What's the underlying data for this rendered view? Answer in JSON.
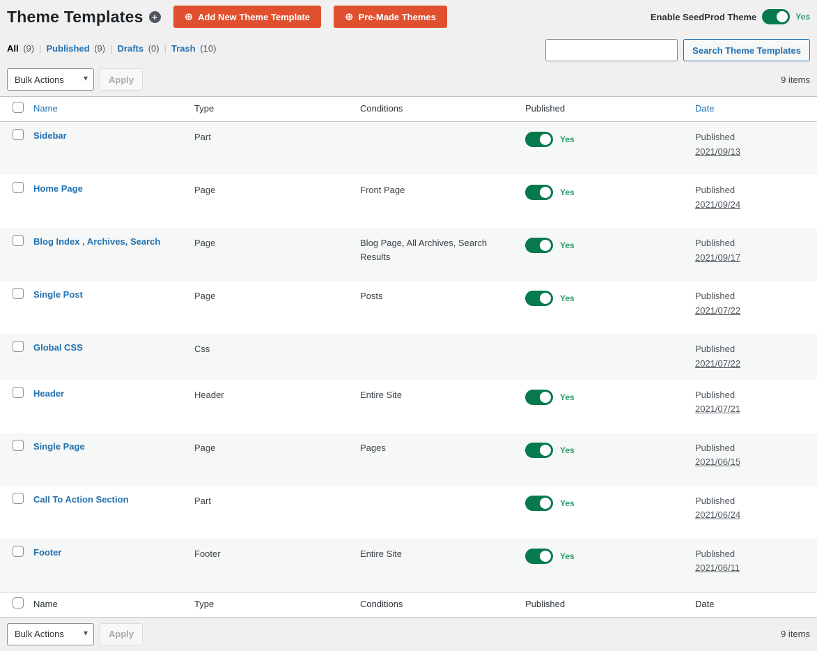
{
  "colors": {
    "accent_orange": "#e0502f",
    "toggle_green": "#077a4d",
    "yes_green": "#2f9e6d",
    "link_blue": "#2271b1"
  },
  "header": {
    "title": "Theme Templates",
    "title_icon": "+",
    "add_button_label": "Add New Theme Template",
    "premade_button_label": "Pre-Made Themes",
    "button_icon": "⊕",
    "enable_toggle": {
      "label": "Enable SeedProd Theme",
      "state": "on",
      "value_label": "Yes"
    }
  },
  "filters": [
    {
      "label": "All",
      "count": "(9)",
      "active": true
    },
    {
      "label": "Published",
      "count": "(9)",
      "active": false
    },
    {
      "label": "Drafts",
      "count": "(0)",
      "active": false
    },
    {
      "label": "Trash",
      "count": "(10)",
      "active": false
    }
  ],
  "search": {
    "value": "",
    "button_label": "Search Theme Templates"
  },
  "bulk_actions": {
    "select_label": "Bulk Actions",
    "apply_label": "Apply",
    "items_count": "9 items"
  },
  "table": {
    "columns": [
      {
        "label": "Name",
        "sortable": true
      },
      {
        "label": "Type",
        "sortable": false
      },
      {
        "label": "Conditions",
        "sortable": false
      },
      {
        "label": "Published",
        "sortable": false
      },
      {
        "label": "Date",
        "sortable": true
      }
    ],
    "rows": [
      {
        "name": "Sidebar",
        "type": "Part",
        "conditions": "",
        "published": true,
        "published_label": "Yes",
        "date_status": "Published",
        "date": "2021/09/13",
        "compact": false
      },
      {
        "name": "Home Page",
        "type": "Page",
        "conditions": "Front Page",
        "published": true,
        "published_label": "Yes",
        "date_status": "Published",
        "date": "2021/09/24",
        "compact": false
      },
      {
        "name": "Blog Index , Archives, Search",
        "type": "Page",
        "conditions": "Blog Page, All Archives, Search Results",
        "published": true,
        "published_label": "Yes",
        "date_status": "Published",
        "date": "2021/09/17",
        "compact": false
      },
      {
        "name": "Single Post",
        "type": "Page",
        "conditions": "Posts",
        "published": true,
        "published_label": "Yes",
        "date_status": "Published",
        "date": "2021/07/22",
        "compact": false
      },
      {
        "name": "Global CSS",
        "type": "Css",
        "conditions": "",
        "published": false,
        "published_label": "",
        "date_status": "Published",
        "date": "2021/07/22",
        "compact": true
      },
      {
        "name": "Header",
        "type": "Header",
        "conditions": "Entire Site",
        "published": true,
        "published_label": "Yes",
        "date_status": "Published",
        "date": "2021/07/21",
        "compact": false
      },
      {
        "name": "Single Page",
        "type": "Page",
        "conditions": "Pages",
        "published": true,
        "published_label": "Yes",
        "date_status": "Published",
        "date": "2021/06/15",
        "compact": false
      },
      {
        "name": "Call To Action Section",
        "type": "Part",
        "conditions": "",
        "published": true,
        "published_label": "Yes",
        "date_status": "Published",
        "date": "2021/06/24",
        "compact": false
      },
      {
        "name": "Footer",
        "type": "Footer",
        "conditions": "Entire Site",
        "published": true,
        "published_label": "Yes",
        "date_status": "Published",
        "date": "2021/06/11",
        "compact": false
      }
    ]
  }
}
